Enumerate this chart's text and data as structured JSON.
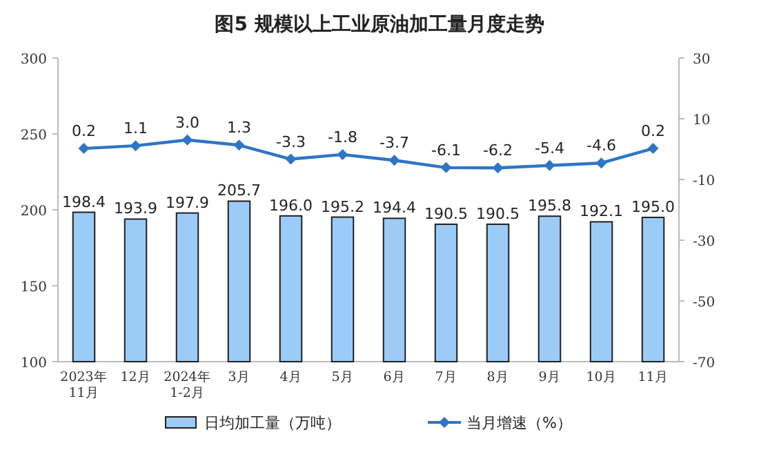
{
  "chart_data": {
    "type": "bar",
    "title": "图5  规模以上工业原油加工量月度走势",
    "categories": [
      "2023年\n11月",
      "12月",
      "2024年\n1-2月",
      "3月",
      "4月",
      "5月",
      "6月",
      "7月",
      "8月",
      "9月",
      "10月",
      "11月"
    ],
    "series": [
      {
        "name": "日均加工量（万吨）",
        "color": "#9dcbf7",
        "values": [
          198.4,
          193.9,
          197.9,
          205.7,
          196.0,
          195.2,
          194.4,
          190.5,
          190.5,
          195.8,
          192.1,
          195.0
        ],
        "value_labels": [
          "198.4",
          "193.9",
          "197.9",
          "205.7",
          "196.0",
          "195.2",
          "194.4",
          "190.5",
          "190.5",
          "195.8",
          "192.1",
          "195.0"
        ]
      },
      {
        "name": "当月增速（%）",
        "type": "line",
        "axis": "y2",
        "color": "#2e75c6",
        "marker": "diamond",
        "values": [
          0.2,
          1.1,
          3.0,
          1.3,
          -3.3,
          -1.8,
          -3.7,
          -6.1,
          -6.2,
          -5.4,
          -4.6,
          0.2
        ],
        "value_labels": [
          "0.2",
          "1.1",
          "3.0",
          "1.3",
          "-3.3",
          "-1.8",
          "-3.7",
          "-6.1",
          "-6.2",
          "-5.4",
          "-4.6",
          "0.2"
        ]
      }
    ],
    "ylim": [
      100,
      300
    ],
    "yticks": [
      100,
      150,
      200,
      250,
      300
    ],
    "y2lim": [
      -70,
      30
    ],
    "y2ticks": [
      -70,
      -50,
      -30,
      -10,
      10,
      30
    ],
    "legend": "bottom"
  }
}
